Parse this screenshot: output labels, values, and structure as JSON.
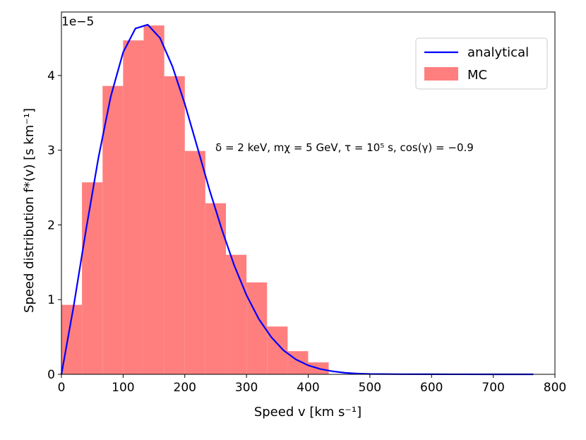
{
  "chart_data": {
    "type": "bar",
    "title": "",
    "xlabel": "Speed v [km s⁻¹]",
    "ylabel": "Speed distribution f*(v) [s km⁻¹]",
    "y_scale_note": "1e−5",
    "xlim": [
      0,
      800
    ],
    "ylim": [
      0,
      4.85
    ],
    "xticks": [
      0,
      100,
      200,
      300,
      400,
      500,
      600,
      700,
      800
    ],
    "yticks": [
      0,
      1,
      2,
      3,
      4
    ],
    "grid": false,
    "legend_position": "top-right",
    "annotation": "δ = 2 keV, mχ = 5 GeV, τ = 10⁵ s, cos(γ) = −0.9",
    "series": [
      {
        "name": "MC",
        "type": "histogram",
        "color": "#ff7f7f",
        "bin_edges": [
          0,
          33.3,
          66.7,
          100,
          133.3,
          166.7,
          200,
          233.3,
          266.7,
          300,
          333.3,
          366.7,
          400,
          433.3
        ],
        "values": [
          0.93,
          2.57,
          3.86,
          4.47,
          4.67,
          3.99,
          2.99,
          2.29,
          1.6,
          1.23,
          0.64,
          0.31,
          0.16
        ]
      },
      {
        "name": "analytical",
        "type": "line",
        "color": "#0000ff",
        "x": [
          0,
          20,
          40,
          60,
          80,
          100,
          120,
          140,
          160,
          180,
          200,
          220,
          240,
          260,
          280,
          300,
          320,
          340,
          360,
          380,
          400,
          420,
          440,
          460,
          480,
          500,
          550,
          600,
          650,
          700,
          765
        ],
        "y": [
          0.0,
          0.92,
          1.94,
          2.9,
          3.72,
          4.31,
          4.63,
          4.68,
          4.5,
          4.12,
          3.62,
          3.05,
          2.47,
          1.94,
          1.46,
          1.06,
          0.74,
          0.5,
          0.32,
          0.2,
          0.12,
          0.07,
          0.04,
          0.02,
          0.01,
          0.005,
          0.002,
          0.001,
          0.0005,
          0.0002,
          0.0
        ]
      }
    ]
  }
}
